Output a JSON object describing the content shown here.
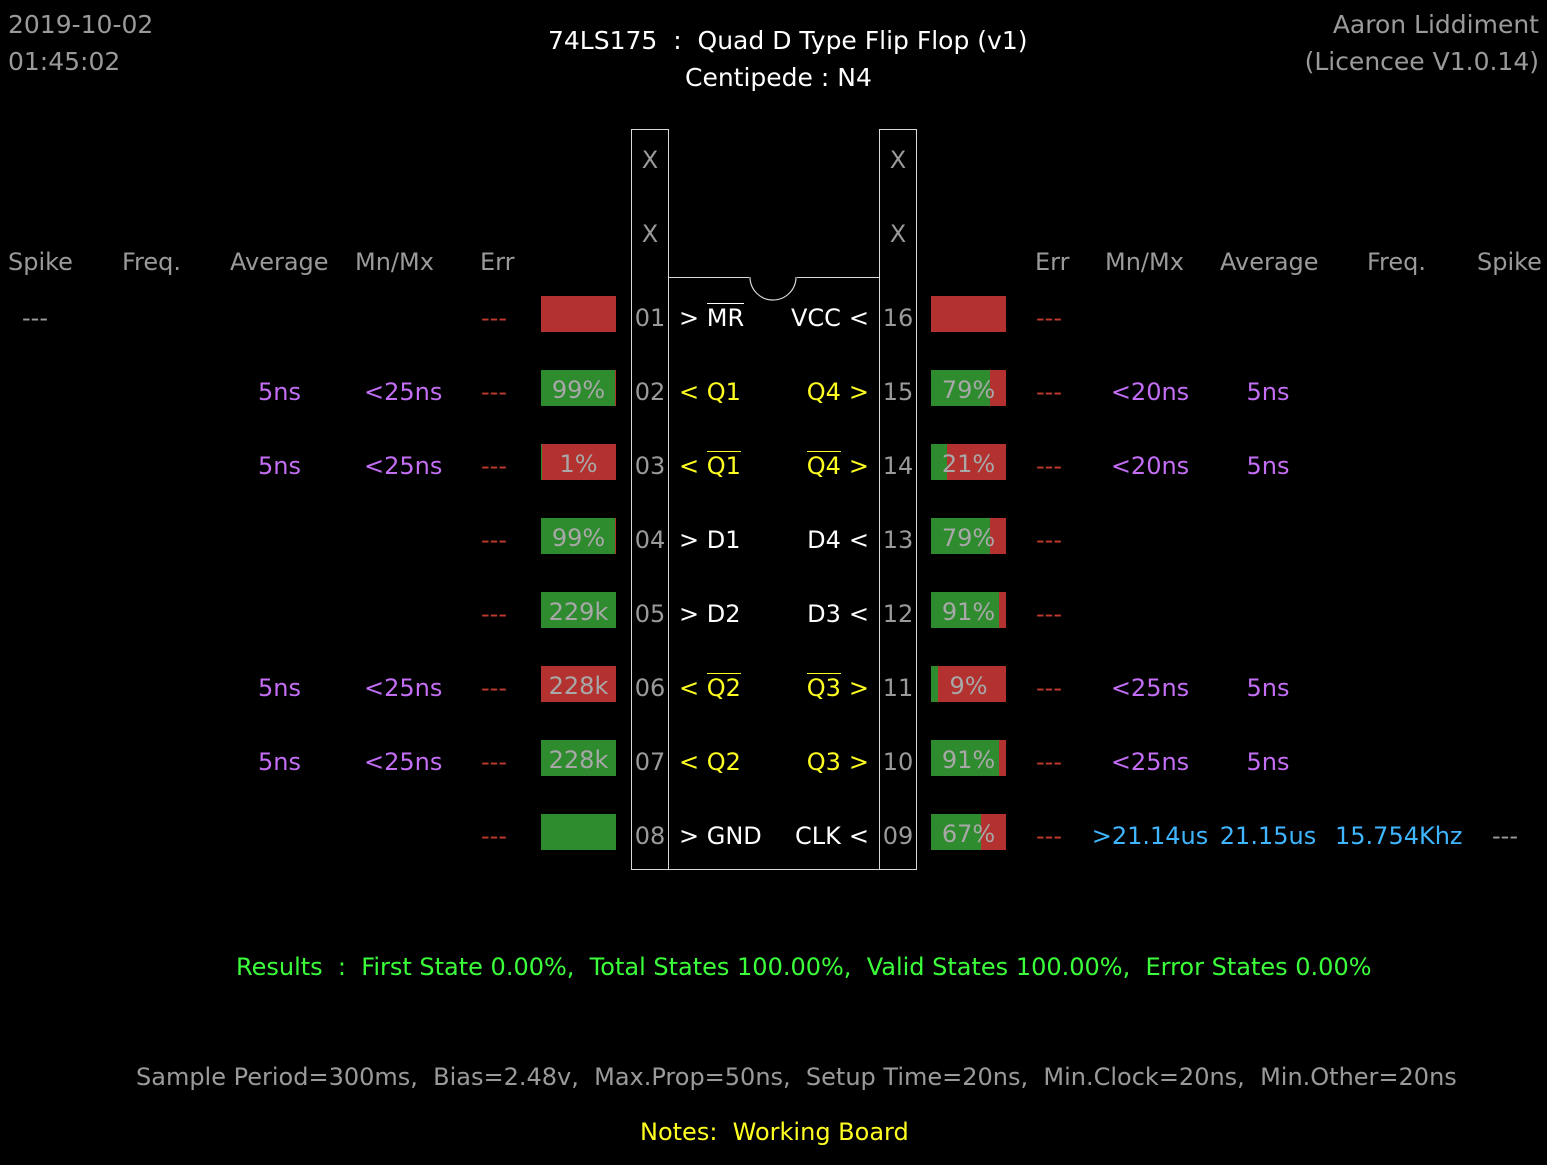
{
  "header": {
    "date": "2019-10-02",
    "time": "01:45:02",
    "title": "74LS175  :  Quad D Type Flip Flop (v1)",
    "subtitle": "Centipede : N4",
    "author": "Aaron Liddiment",
    "licence": "(Licencee V1.0.14)"
  },
  "columns": {
    "left": [
      "Spike",
      "Freq.",
      "Average",
      "Mn/Mx",
      "Err"
    ],
    "right": [
      "Err",
      "Mn/Mx",
      "Average",
      "Freq.",
      "Spike"
    ]
  },
  "chip_top": {
    "left": [
      "X",
      "X"
    ],
    "right": [
      "X",
      "X"
    ]
  },
  "left_pins": [
    {
      "num": "01",
      "label": "> MR",
      "overline": "MR",
      "dir": ">",
      "color": "white",
      "bar": "",
      "pct": 0,
      "err": "---",
      "mnmx": "",
      "avg": "",
      "freq": "",
      "spike": "---"
    },
    {
      "num": "02",
      "label": "< Q1",
      "overline": "",
      "dir": "<",
      "color": "yellow",
      "bar": "99%",
      "pct": 99,
      "err": "---",
      "mnmx": "<25ns",
      "avg": "5ns",
      "freq": "",
      "spike": ""
    },
    {
      "num": "03",
      "label": "< Q1",
      "overline": "Q1",
      "dir": "<",
      "color": "yellow",
      "bar": "1%",
      "pct": 1,
      "err": "---",
      "mnmx": "<25ns",
      "avg": "5ns",
      "freq": "",
      "spike": ""
    },
    {
      "num": "04",
      "label": "> D1",
      "overline": "",
      "dir": ">",
      "color": "white",
      "bar": "99%",
      "pct": 99,
      "err": "---",
      "mnmx": "",
      "avg": "",
      "freq": "",
      "spike": ""
    },
    {
      "num": "05",
      "label": "> D2",
      "overline": "",
      "dir": ">",
      "color": "white",
      "bar": "229k",
      "pct": 100,
      "err": "---",
      "mnmx": "",
      "avg": "",
      "freq": "",
      "spike": ""
    },
    {
      "num": "06",
      "label": "< Q2",
      "overline": "Q2",
      "dir": "<",
      "color": "yellow",
      "bar": "228k",
      "pct": 0,
      "err": "---",
      "mnmx": "<25ns",
      "avg": "5ns",
      "freq": "",
      "spike": ""
    },
    {
      "num": "07",
      "label": "< Q2",
      "overline": "",
      "dir": "<",
      "color": "yellow",
      "bar": "228k",
      "pct": 100,
      "err": "---",
      "mnmx": "<25ns",
      "avg": "5ns",
      "freq": "",
      "spike": ""
    },
    {
      "num": "08",
      "label": "> GND",
      "overline": "",
      "dir": ">",
      "color": "white",
      "bar": "",
      "pct": 100,
      "err": "---",
      "mnmx": "",
      "avg": "",
      "freq": "",
      "spike": ""
    }
  ],
  "right_pins": [
    {
      "num": "16",
      "name": "VCC",
      "dir": "<",
      "overline": false,
      "color": "white",
      "bar": "",
      "pct": 0,
      "err": "---",
      "mnmx": "",
      "avg": "",
      "freq": "",
      "spike": ""
    },
    {
      "num": "15",
      "name": "Q4",
      "dir": ">",
      "overline": false,
      "color": "yellow",
      "bar": "79%",
      "pct": 79,
      "err": "---",
      "mnmx": "<20ns",
      "avg": "5ns",
      "freq": "",
      "spike": ""
    },
    {
      "num": "14",
      "name": "Q4",
      "dir": ">",
      "overline": true,
      "color": "yellow",
      "bar": "21%",
      "pct": 21,
      "err": "---",
      "mnmx": "<20ns",
      "avg": "5ns",
      "freq": "",
      "spike": ""
    },
    {
      "num": "13",
      "name": "D4",
      "dir": "<",
      "overline": false,
      "color": "white",
      "bar": "79%",
      "pct": 79,
      "err": "---",
      "mnmx": "",
      "avg": "",
      "freq": "",
      "spike": ""
    },
    {
      "num": "12",
      "name": "D3",
      "dir": "<",
      "overline": false,
      "color": "white",
      "bar": "91%",
      "pct": 91,
      "err": "---",
      "mnmx": "",
      "avg": "",
      "freq": "",
      "spike": ""
    },
    {
      "num": "11",
      "name": "Q3",
      "dir": ">",
      "overline": true,
      "color": "yellow",
      "bar": "9%",
      "pct": 9,
      "err": "---",
      "mnmx": "<25ns",
      "avg": "5ns",
      "freq": "",
      "spike": ""
    },
    {
      "num": "10",
      "name": "Q3",
      "dir": ">",
      "overline": false,
      "color": "yellow",
      "bar": "91%",
      "pct": 91,
      "err": "---",
      "mnmx": "<25ns",
      "avg": "5ns",
      "freq": "",
      "spike": ""
    },
    {
      "num": "09",
      "name": "CLK",
      "dir": "<",
      "overline": false,
      "color": "white",
      "bar": "67%",
      "pct": 67,
      "err": "---",
      "mnmx": ">21.14us",
      "avg": "21.15us",
      "freq": "15.754Khz",
      "spike": "---",
      "clock": true
    }
  ],
  "results": "Results  :  First State 0.00%,  Total States 100.00%,  Valid States 100.00%,  Error States 0.00%",
  "settings": "Sample Period=300ms,  Bias=2.48v,  Max.Prop=50ns,  Setup Time=20ns,  Min.Clock=20ns,  Min.Other=20ns",
  "notes": "Notes:  Working Board",
  "colors": {
    "bar_high": "#2e8b2e",
    "bar_low": "#b3312f",
    "timing": "#c36ef5",
    "clock": "#3fb6ff",
    "results": "#3cff3c",
    "notes": "#ffff22"
  }
}
